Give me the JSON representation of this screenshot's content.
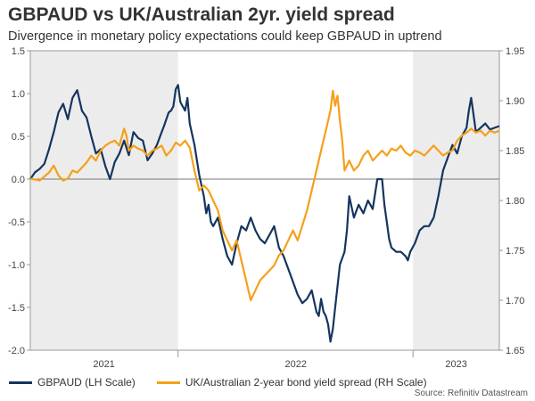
{
  "title": "GBPAUD vs UK/Australian 2yr. yield spread",
  "subtitle": "Divergence in monetary policy expectations could keep GBPAUD in uptrend",
  "source": "Source: Refinitiv Datastream",
  "chart_data": {
    "type": "line",
    "title": "GBPAUD vs UK/Australian 2yr. yield spread",
    "subtitle": "Divergence in monetary policy expectations could keep GBPAUD in uptrend",
    "x_labels": [
      "2021",
      "2022",
      "2023"
    ],
    "left_axis": {
      "ylim": [
        -2.0,
        1.5
      ],
      "ticks": [
        "1.5",
        "1.0",
        "0.5",
        "0.0",
        "-0.5",
        "-1.0",
        "-1.5",
        "-2.0"
      ]
    },
    "right_axis": {
      "ylim": [
        1.65,
        1.95
      ],
      "ticks": [
        "1.95",
        "1.90",
        "1.85",
        "1.80",
        "1.75",
        "1.70",
        "1.65"
      ]
    },
    "grid": false,
    "legend_position": "bottom",
    "shaded_periods": [
      "2021",
      "2023"
    ],
    "series": [
      {
        "name": "GBPAUD (LH Scale)",
        "axis": "left",
        "color": "#15355f",
        "points": [
          [
            0.0,
            0.0
          ],
          [
            0.01,
            0.08
          ],
          [
            0.02,
            0.12
          ],
          [
            0.03,
            0.18
          ],
          [
            0.04,
            0.35
          ],
          [
            0.05,
            0.55
          ],
          [
            0.06,
            0.78
          ],
          [
            0.07,
            0.88
          ],
          [
            0.08,
            0.7
          ],
          [
            0.09,
            0.95
          ],
          [
            0.1,
            1.04
          ],
          [
            0.11,
            0.8
          ],
          [
            0.12,
            0.72
          ],
          [
            0.13,
            0.5
          ],
          [
            0.14,
            0.3
          ],
          [
            0.15,
            0.35
          ],
          [
            0.16,
            0.15
          ],
          [
            0.17,
            0.0
          ],
          [
            0.18,
            0.2
          ],
          [
            0.19,
            0.3
          ],
          [
            0.2,
            0.45
          ],
          [
            0.21,
            0.28
          ],
          [
            0.22,
            0.55
          ],
          [
            0.23,
            0.48
          ],
          [
            0.24,
            0.45
          ],
          [
            0.25,
            0.22
          ],
          [
            0.26,
            0.3
          ],
          [
            0.27,
            0.4
          ],
          [
            0.28,
            0.55
          ],
          [
            0.285,
            0.62
          ],
          [
            0.295,
            0.78
          ],
          [
            0.3,
            0.8
          ],
          [
            0.305,
            0.85
          ],
          [
            0.31,
            1.05
          ],
          [
            0.315,
            1.1
          ],
          [
            0.32,
            0.9
          ],
          [
            0.33,
            0.8
          ],
          [
            0.335,
            0.95
          ],
          [
            0.34,
            0.65
          ],
          [
            0.35,
            0.4
          ],
          [
            0.36,
            0.05
          ],
          [
            0.37,
            -0.2
          ],
          [
            0.375,
            -0.4
          ],
          [
            0.38,
            -0.3
          ],
          [
            0.385,
            -0.5
          ],
          [
            0.39,
            -0.55
          ],
          [
            0.4,
            -0.45
          ],
          [
            0.41,
            -0.7
          ],
          [
            0.42,
            -0.9
          ],
          [
            0.43,
            -1.0
          ],
          [
            0.44,
            -0.75
          ],
          [
            0.45,
            -0.55
          ],
          [
            0.46,
            -0.6
          ],
          [
            0.47,
            -0.45
          ],
          [
            0.48,
            -0.6
          ],
          [
            0.49,
            -0.7
          ],
          [
            0.5,
            -0.75
          ],
          [
            0.51,
            -0.65
          ],
          [
            0.52,
            -0.55
          ],
          [
            0.53,
            -0.8
          ],
          [
            0.54,
            -0.9
          ],
          [
            0.55,
            -1.05
          ],
          [
            0.56,
            -1.2
          ],
          [
            0.57,
            -1.35
          ],
          [
            0.58,
            -1.45
          ],
          [
            0.59,
            -1.4
          ],
          [
            0.6,
            -1.3
          ],
          [
            0.61,
            -1.55
          ],
          [
            0.615,
            -1.6
          ],
          [
            0.62,
            -1.4
          ],
          [
            0.625,
            -1.55
          ],
          [
            0.63,
            -1.6
          ],
          [
            0.635,
            -1.7
          ],
          [
            0.64,
            -1.9
          ],
          [
            0.645,
            -1.75
          ],
          [
            0.65,
            -1.5
          ],
          [
            0.66,
            -1.0
          ],
          [
            0.67,
            -0.85
          ],
          [
            0.675,
            -0.6
          ],
          [
            0.68,
            -0.2
          ],
          [
            0.69,
            -0.45
          ],
          [
            0.7,
            -0.3
          ],
          [
            0.71,
            -0.4
          ],
          [
            0.72,
            -0.25
          ],
          [
            0.73,
            -0.35
          ],
          [
            0.74,
            0.0
          ],
          [
            0.75,
            0.0
          ],
          [
            0.755,
            -0.3
          ],
          [
            0.76,
            -0.5
          ],
          [
            0.765,
            -0.7
          ],
          [
            0.77,
            -0.8
          ],
          [
            0.78,
            -0.85
          ],
          [
            0.79,
            -0.85
          ],
          [
            0.8,
            -0.9
          ],
          [
            0.805,
            -0.95
          ],
          [
            0.81,
            -0.85
          ],
          [
            0.82,
            -0.75
          ],
          [
            0.83,
            -0.6
          ],
          [
            0.84,
            -0.55
          ],
          [
            0.85,
            -0.55
          ],
          [
            0.86,
            -0.45
          ],
          [
            0.87,
            -0.2
          ],
          [
            0.88,
            0.1
          ],
          [
            0.89,
            0.25
          ],
          [
            0.9,
            0.4
          ],
          [
            0.91,
            0.3
          ],
          [
            0.92,
            0.5
          ],
          [
            0.93,
            0.6
          ],
          [
            0.935,
            0.8
          ],
          [
            0.94,
            0.95
          ],
          [
            0.945,
            0.75
          ],
          [
            0.95,
            0.55
          ],
          [
            0.96,
            0.6
          ],
          [
            0.97,
            0.65
          ],
          [
            0.98,
            0.58
          ],
          [
            0.99,
            0.6
          ],
          [
            1.0,
            0.62
          ]
        ]
      },
      {
        "name": "UK/Australian 2-year bond yield spread (RH Scale)",
        "axis": "right",
        "color": "#f5a01a",
        "points": [
          [
            0.0,
            1.822
          ],
          [
            0.02,
            1.82
          ],
          [
            0.04,
            1.828
          ],
          [
            0.05,
            1.835
          ],
          [
            0.06,
            1.825
          ],
          [
            0.07,
            1.82
          ],
          [
            0.08,
            1.822
          ],
          [
            0.09,
            1.83
          ],
          [
            0.1,
            1.828
          ],
          [
            0.11,
            1.833
          ],
          [
            0.12,
            1.838
          ],
          [
            0.13,
            1.845
          ],
          [
            0.14,
            1.84
          ],
          [
            0.15,
            1.85
          ],
          [
            0.16,
            1.855
          ],
          [
            0.17,
            1.858
          ],
          [
            0.18,
            1.86
          ],
          [
            0.19,
            1.855
          ],
          [
            0.2,
            1.872
          ],
          [
            0.205,
            1.865
          ],
          [
            0.21,
            1.85
          ],
          [
            0.22,
            1.855
          ],
          [
            0.23,
            1.852
          ],
          [
            0.24,
            1.85
          ],
          [
            0.25,
            1.845
          ],
          [
            0.26,
            1.85
          ],
          [
            0.27,
            1.852
          ],
          [
            0.28,
            1.855
          ],
          [
            0.29,
            1.845
          ],
          [
            0.3,
            1.85
          ],
          [
            0.31,
            1.858
          ],
          [
            0.32,
            1.855
          ],
          [
            0.33,
            1.86
          ],
          [
            0.34,
            1.853
          ],
          [
            0.35,
            1.83
          ],
          [
            0.36,
            1.81
          ],
          [
            0.37,
            1.815
          ],
          [
            0.38,
            1.81
          ],
          [
            0.39,
            1.8
          ],
          [
            0.4,
            1.79
          ],
          [
            0.41,
            1.77
          ],
          [
            0.42,
            1.76
          ],
          [
            0.43,
            1.75
          ],
          [
            0.44,
            1.76
          ],
          [
            0.45,
            1.74
          ],
          [
            0.46,
            1.72
          ],
          [
            0.47,
            1.7
          ],
          [
            0.48,
            1.71
          ],
          [
            0.49,
            1.72
          ],
          [
            0.5,
            1.725
          ],
          [
            0.51,
            1.73
          ],
          [
            0.52,
            1.735
          ],
          [
            0.53,
            1.745
          ],
          [
            0.54,
            1.75
          ],
          [
            0.55,
            1.76
          ],
          [
            0.56,
            1.77
          ],
          [
            0.57,
            1.76
          ],
          [
            0.58,
            1.775
          ],
          [
            0.59,
            1.79
          ],
          [
            0.6,
            1.81
          ],
          [
            0.61,
            1.83
          ],
          [
            0.62,
            1.85
          ],
          [
            0.63,
            1.87
          ],
          [
            0.64,
            1.89
          ],
          [
            0.645,
            1.91
          ],
          [
            0.65,
            1.895
          ],
          [
            0.655,
            1.905
          ],
          [
            0.66,
            1.88
          ],
          [
            0.665,
            1.86
          ],
          [
            0.67,
            1.83
          ],
          [
            0.68,
            1.84
          ],
          [
            0.69,
            1.83
          ],
          [
            0.7,
            1.835
          ],
          [
            0.71,
            1.845
          ],
          [
            0.72,
            1.85
          ],
          [
            0.73,
            1.84
          ],
          [
            0.74,
            1.845
          ],
          [
            0.75,
            1.85
          ],
          [
            0.76,
            1.845
          ],
          [
            0.77,
            1.852
          ],
          [
            0.78,
            1.85
          ],
          [
            0.79,
            1.855
          ],
          [
            0.8,
            1.848
          ],
          [
            0.81,
            1.845
          ],
          [
            0.82,
            1.85
          ],
          [
            0.83,
            1.848
          ],
          [
            0.84,
            1.845
          ],
          [
            0.85,
            1.85
          ],
          [
            0.86,
            1.855
          ],
          [
            0.87,
            1.85
          ],
          [
            0.88,
            1.845
          ],
          [
            0.89,
            1.848
          ],
          [
            0.9,
            1.85
          ],
          [
            0.91,
            1.86
          ],
          [
            0.92,
            1.865
          ],
          [
            0.93,
            1.868
          ],
          [
            0.94,
            1.872
          ],
          [
            0.95,
            1.868
          ],
          [
            0.96,
            1.87
          ],
          [
            0.97,
            1.865
          ],
          [
            0.98,
            1.87
          ],
          [
            0.99,
            1.868
          ],
          [
            1.0,
            1.87
          ]
        ]
      }
    ]
  }
}
